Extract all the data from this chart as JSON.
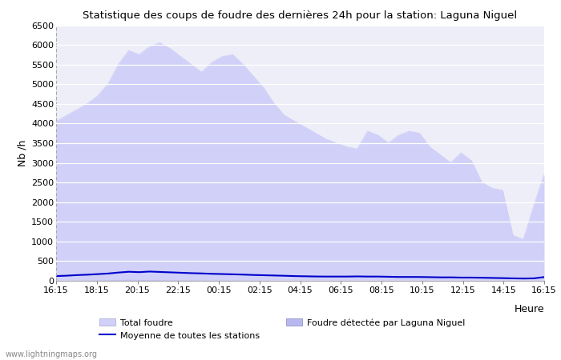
{
  "title": "Statistique des coups de foudre des dernières 24h pour la station: Laguna Niguel",
  "ylabel": "Nb /h",
  "xlabel": "Heure",
  "watermark": "www.lightningmaps.org",
  "ylim": [
    0,
    6500
  ],
  "yticks": [
    0,
    500,
    1000,
    1500,
    2000,
    2500,
    3000,
    3500,
    4000,
    4500,
    5000,
    5500,
    6000,
    6500
  ],
  "xtick_labels": [
    "16:15",
    "18:15",
    "20:15",
    "22:15",
    "00:15",
    "02:15",
    "04:15",
    "06:15",
    "08:15",
    "10:15",
    "12:15",
    "14:15",
    "16:15"
  ],
  "background_color": "#ffffff",
  "plot_bg_color": "#eeeef8",
  "total_foudre_color": "#d0d0f8",
  "laguna_color": "#b8b8f0",
  "moyenne_color": "#0000cc",
  "legend_labels": [
    "Total foudre",
    "Moyenne de toutes les stations",
    "Foudre détectée par Laguna Niguel"
  ],
  "total_foudre": [
    4050,
    4200,
    4350,
    4500,
    4700,
    5000,
    5500,
    5850,
    5750,
    5950,
    6050,
    5900,
    5700,
    5500,
    5300,
    5550,
    5700,
    5750,
    5500,
    5200,
    4900,
    4500,
    4200,
    4050,
    3900,
    3750,
    3600,
    3500,
    3400,
    3350,
    3800,
    3700,
    3500,
    3700,
    3800,
    3750,
    3400,
    3200,
    3000,
    3250,
    3050,
    2500,
    2350,
    2300,
    1150,
    1050,
    1900,
    2700
  ],
  "laguna_niguel": [
    10,
    12,
    15,
    18,
    20,
    25,
    30,
    35,
    30,
    30,
    28,
    25,
    22,
    20,
    18,
    18,
    18,
    20,
    18,
    15,
    12,
    10,
    10,
    8,
    8,
    8,
    6,
    6,
    6,
    6,
    6,
    6,
    6,
    6,
    6,
    6,
    6,
    6,
    6,
    6,
    6,
    6,
    6,
    6,
    5,
    5,
    5,
    5
  ],
  "moyenne": [
    120,
    130,
    145,
    155,
    170,
    185,
    210,
    230,
    220,
    235,
    225,
    215,
    205,
    195,
    188,
    178,
    172,
    165,
    158,
    148,
    142,
    135,
    128,
    120,
    115,
    110,
    108,
    108,
    108,
    112,
    108,
    108,
    103,
    98,
    98,
    97,
    93,
    88,
    88,
    82,
    82,
    78,
    73,
    68,
    62,
    58,
    62,
    95
  ],
  "n_points": 48
}
